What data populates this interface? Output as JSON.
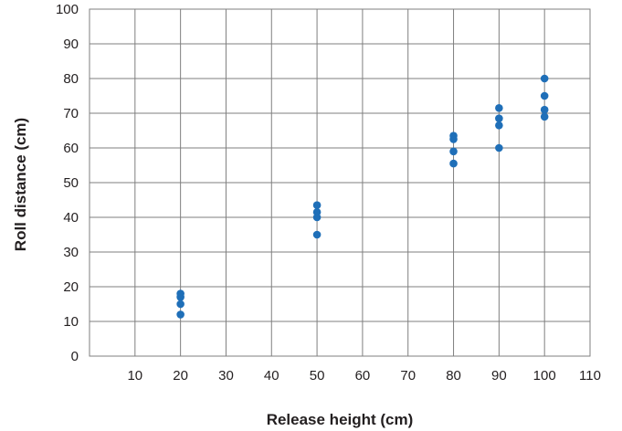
{
  "chart_data": {
    "type": "scatter",
    "xlabel": "Release height (cm)",
    "ylabel": "Roll distance (cm)",
    "xlim": [
      0,
      110
    ],
    "ylim": [
      0,
      100
    ],
    "x_ticks": [
      10,
      20,
      30,
      40,
      50,
      60,
      70,
      80,
      90,
      100,
      110
    ],
    "y_ticks": [
      0,
      10,
      20,
      30,
      40,
      50,
      60,
      70,
      80,
      90,
      100
    ],
    "grid": true,
    "legend": "none",
    "point_color": "#1f6fb8",
    "series": [
      {
        "points": [
          [
            20,
            18
          ],
          [
            20,
            17
          ],
          [
            20,
            15
          ],
          [
            20,
            12
          ],
          [
            50,
            43.5
          ],
          [
            50,
            41.5
          ],
          [
            50,
            40
          ],
          [
            50,
            35
          ],
          [
            80,
            63.5
          ],
          [
            80,
            62.5
          ],
          [
            80,
            59
          ],
          [
            80,
            55.5
          ],
          [
            90,
            71.5
          ],
          [
            90,
            68.5
          ],
          [
            90,
            66.5
          ],
          [
            90,
            60
          ],
          [
            100,
            80
          ],
          [
            100,
            75
          ],
          [
            100,
            71
          ],
          [
            100,
            69
          ]
        ]
      }
    ]
  }
}
